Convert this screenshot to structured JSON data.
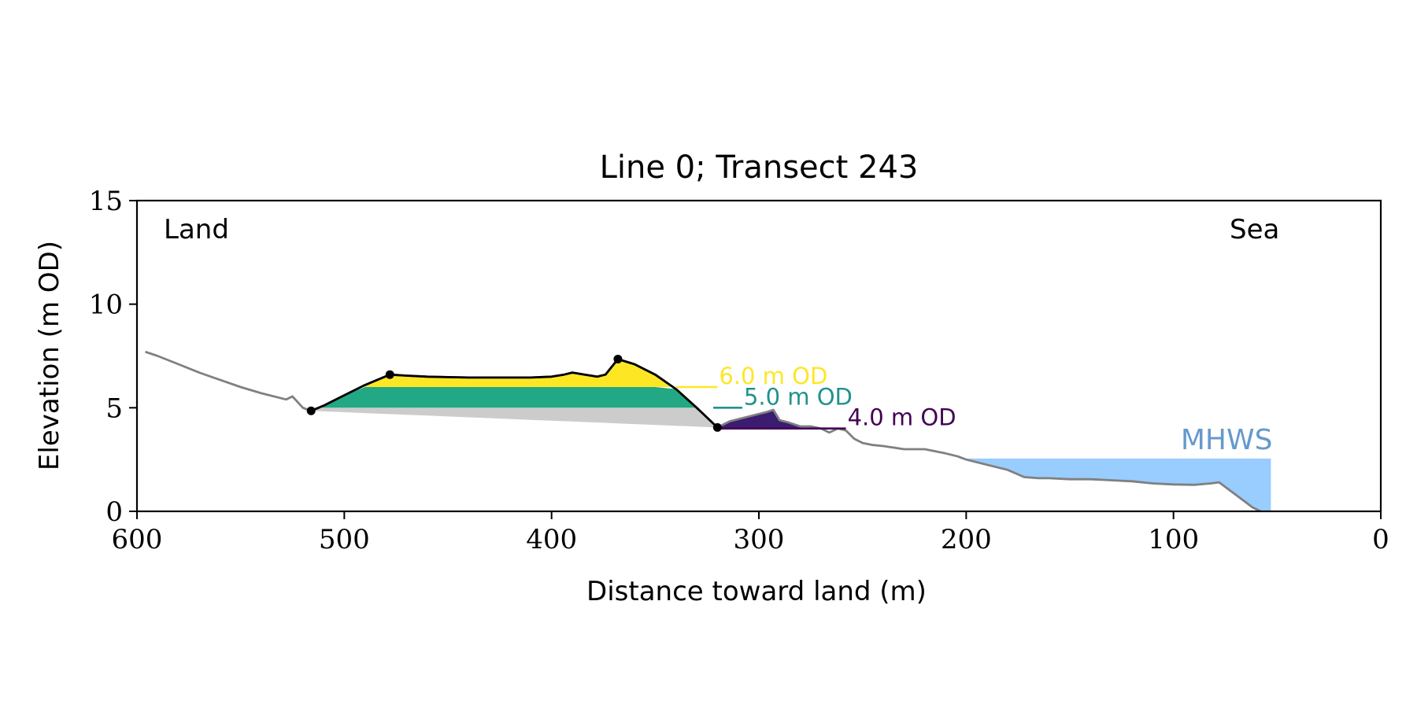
{
  "chart_data": {
    "type": "area",
    "title": "Line 0; Transect 243",
    "xlabel": "Distance toward land (m)",
    "ylabel": "Elevation (m OD)",
    "xlim": [
      600,
      0
    ],
    "ylim": [
      0,
      15
    ],
    "x_axis_reversed": true,
    "xticks": [
      600,
      500,
      400,
      300,
      200,
      100,
      0
    ],
    "yticks": [
      0,
      5,
      10,
      15
    ],
    "grid": false,
    "annotations": {
      "land_label": "Land",
      "sea_label": "Sea"
    },
    "profile": {
      "x": [
        596,
        590,
        580,
        570,
        560,
        550,
        540,
        532,
        528,
        525,
        520,
        516,
        510,
        500,
        490,
        478,
        470,
        460,
        450,
        440,
        430,
        420,
        410,
        400,
        394,
        390,
        384,
        378,
        374,
        368,
        360,
        350,
        340,
        330,
        320,
        314,
        306,
        300,
        296,
        293,
        290,
        286,
        280,
        275,
        270,
        266,
        262,
        258,
        254,
        250,
        245,
        240,
        230,
        220,
        210,
        204,
        200,
        190,
        180,
        172,
        165,
        160,
        150,
        140,
        130,
        120,
        110,
        100,
        90,
        82,
        78,
        74,
        70,
        66,
        62,
        58
      ],
      "y": [
        7.7,
        7.5,
        7.1,
        6.7,
        6.35,
        6.0,
        5.7,
        5.5,
        5.4,
        5.55,
        5.0,
        4.85,
        5.1,
        5.6,
        6.1,
        6.6,
        6.55,
        6.5,
        6.48,
        6.46,
        6.46,
        6.46,
        6.46,
        6.5,
        6.6,
        6.7,
        6.6,
        6.5,
        6.6,
        7.35,
        7.1,
        6.6,
        5.9,
        5.0,
        4.05,
        4.35,
        4.55,
        4.7,
        4.8,
        4.9,
        4.4,
        4.3,
        4.1,
        4.1,
        4.0,
        3.8,
        4.0,
        3.9,
        3.5,
        3.3,
        3.2,
        3.15,
        3.0,
        3.0,
        2.8,
        2.65,
        2.5,
        2.25,
        2.0,
        1.65,
        1.6,
        1.6,
        1.55,
        1.55,
        1.5,
        1.45,
        1.35,
        1.3,
        1.28,
        1.35,
        1.4,
        1.1,
        0.8,
        0.5,
        0.2,
        0.0
      ]
    },
    "dune_crest": {
      "x": [
        516,
        510,
        500,
        490,
        478,
        470,
        460,
        450,
        440,
        430,
        420,
        410,
        400,
        394,
        390,
        384,
        378,
        374,
        368,
        360,
        350,
        340,
        330,
        320
      ],
      "y": [
        4.85,
        5.1,
        5.6,
        6.1,
        6.6,
        6.55,
        6.5,
        6.48,
        6.46,
        6.46,
        6.46,
        6.46,
        6.5,
        6.6,
        6.7,
        6.6,
        6.5,
        6.6,
        7.35,
        7.1,
        6.6,
        5.9,
        5.0,
        4.05
      ]
    },
    "markers": {
      "x": [
        516,
        478,
        368,
        320
      ],
      "y": [
        4.85,
        6.6,
        7.35,
        4.05
      ]
    },
    "base_line": {
      "x": [
        516,
        320
      ],
      "y": [
        4.85,
        4.05
      ]
    },
    "levels": [
      {
        "label": "6.0 m OD",
        "y": 6.0,
        "color": "#fde725",
        "line_x": [
          340,
          320
        ]
      },
      {
        "label": "5.0 m OD",
        "y": 5.0,
        "color": "#21918c",
        "line_x": [
          322,
          308
        ]
      },
      {
        "label": "4.0 m OD",
        "y": 4.0,
        "color": "#440154",
        "line_x": [
          320,
          258
        ]
      }
    ],
    "mhws": {
      "label": "MHWS",
      "y": 2.55,
      "x_start": 205,
      "x_end": 53,
      "color": "#99ccff",
      "label_color": "#6699cc"
    },
    "colors": {
      "profile": "#808080",
      "dune_outline": "#000000",
      "below_base": "#cccccc",
      "band_6": "#fde725",
      "band_5": "#22a884",
      "band_4": "#3b1c70",
      "text_5": "#21918c",
      "text_4": "#440154"
    }
  }
}
